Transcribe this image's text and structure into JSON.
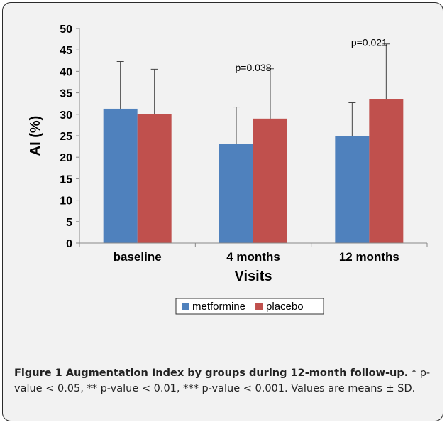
{
  "chart_data": {
    "type": "bar",
    "categories": [
      "baseline",
      "4 months",
      "12 months"
    ],
    "series": [
      {
        "name": "metformine",
        "values": [
          31.3,
          23.1,
          24.9
        ],
        "errors": [
          11.0,
          8.6,
          7.8
        ],
        "color": "#4f81bd"
      },
      {
        "name": "placebo",
        "values": [
          30.1,
          29.0,
          33.5
        ],
        "errors": [
          10.4,
          11.6,
          12.9
        ],
        "color": "#c0504d"
      }
    ],
    "annotations": [
      {
        "category_index": 1,
        "text": "p=0.038"
      },
      {
        "category_index": 2,
        "text": "p=0.021"
      }
    ],
    "xlabel": "Visits",
    "ylabel": "AI (%)",
    "ylim": [
      0,
      50
    ],
    "yticks": [
      "0",
      "5",
      "10",
      "15",
      "20",
      "25",
      "30",
      "35",
      "40",
      "45",
      "50"
    ],
    "grid": false,
    "legend_position": "bottom"
  },
  "caption": {
    "title": "Figure 1 Augmentation Index by groups during 12-month follow-up.",
    "body": " * p-value < 0.05, ** p-value < 0.01, *** p-value < 0.001. Values are means ± SD."
  }
}
